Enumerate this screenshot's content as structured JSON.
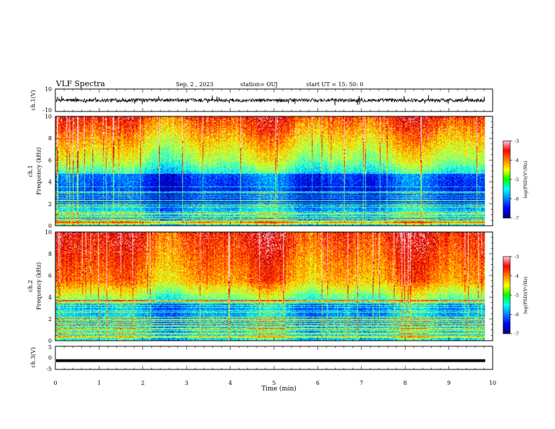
{
  "header": {
    "title": "VLF Spectra",
    "date": "Sep. 2  , 2023",
    "station": "station= OUJ",
    "start": "start  UT =   15: 50: 0"
  },
  "chart_data": [
    {
      "type": "line",
      "panel": "ch1-waveform",
      "ylabel": "ch.1(V)",
      "ylim": [
        -10,
        10
      ],
      "y_ticks": [
        "10",
        "-10"
      ],
      "trace_level": 0,
      "trace_color": "#000000"
    },
    {
      "type": "heatmap",
      "panel": "ch1-spectrogram",
      "ylabel_line1": "ch.1",
      "ylabel_line2": "Frequency (kHz)",
      "ylim": [
        0,
        10
      ],
      "y_ticks": [
        "0",
        "2",
        "4",
        "6",
        "8",
        "10"
      ],
      "colorbar": {
        "label": "log(PSD)(V²/Hz)",
        "range": [
          -7,
          -3
        ],
        "ticks": [
          "-3",
          "-4",
          "-5",
          "-6",
          "-7"
        ],
        "colormap": "jet"
      }
    },
    {
      "type": "heatmap",
      "panel": "ch2-spectrogram",
      "ylabel_line1": "ch.2",
      "ylabel_line2": "Frequency (kHz)",
      "ylim": [
        0,
        10
      ],
      "y_ticks": [
        "0",
        "2",
        "4",
        "6",
        "8",
        "10"
      ],
      "colorbar": {
        "label": "log(PSD)(V²/Hz)",
        "range": [
          -7,
          -3
        ],
        "ticks": [
          "-3",
          "-4",
          "-5",
          "-6",
          "-7"
        ],
        "colormap": "jet"
      }
    },
    {
      "type": "line",
      "panel": "ch3-waveform",
      "ylabel": "ch.3(V)",
      "ylim": [
        -5,
        5
      ],
      "y_ticks": [
        "5",
        "0",
        "-5"
      ],
      "trace_level": -1.2,
      "trace_color": "#000000"
    }
  ],
  "x_axis": {
    "label": "Time (min)",
    "range": [
      0,
      10
    ],
    "ticks": [
      "0",
      "1",
      "2",
      "3",
      "4",
      "5",
      "6",
      "7",
      "8",
      "9",
      "10"
    ],
    "data_end": 9.83
  }
}
